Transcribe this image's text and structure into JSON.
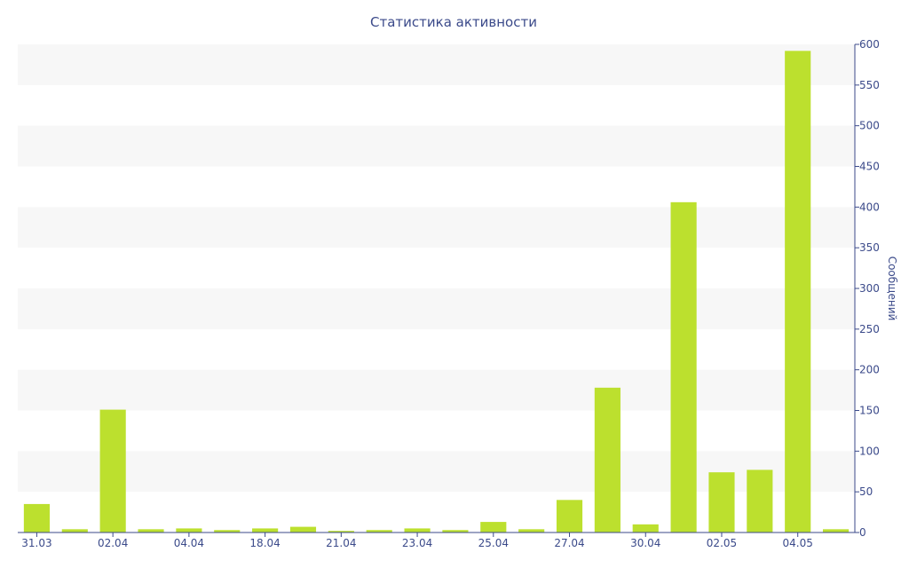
{
  "chart_data": {
    "type": "bar",
    "title": "Статистика активности",
    "ylabel": "Сообщений",
    "xlabel": "",
    "ylim": [
      0,
      600
    ],
    "yticks": [
      0,
      50,
      100,
      150,
      200,
      250,
      300,
      350,
      400,
      450,
      500,
      550,
      600
    ],
    "y_axis_side": "right",
    "grid": "alternating horizontal bands",
    "categories": [
      "31.03",
      "",
      "02.04",
      "",
      "04.04",
      "",
      "18.04",
      "",
      "21.04",
      "",
      "23.04",
      "",
      "25.04",
      "",
      "27.04",
      "",
      "30.04",
      "",
      "02.05",
      "",
      "04.05",
      ""
    ],
    "values": [
      35,
      4,
      151,
      4,
      5,
      3,
      5,
      7,
      2,
      3,
      5,
      3,
      13,
      4,
      40,
      178,
      10,
      406,
      74,
      77,
      592,
      4
    ],
    "colors": {
      "bar": "#bce02e",
      "text": "#3b4a8a",
      "band": "#f7f7f7",
      "axis": "#3b4a8a"
    }
  }
}
